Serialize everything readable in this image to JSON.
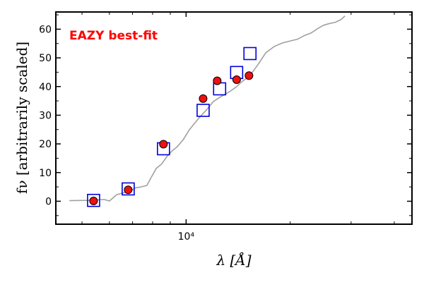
{
  "chart_data": {
    "type": "scatter",
    "title": "",
    "xlabel": "λ [Å]",
    "ylabel": "fν [arbitrarily scaled]",
    "x_scale": "log",
    "xlim": [
      4200,
      45000
    ],
    "ylim": [
      -8,
      66
    ],
    "x_ticks": [
      {
        "value": 10000,
        "label": "10⁴"
      }
    ],
    "y_ticks": [
      {
        "value": 0,
        "label": "0"
      },
      {
        "value": 10,
        "label": "10"
      },
      {
        "value": 20,
        "label": "20"
      },
      {
        "value": 30,
        "label": "30"
      },
      {
        "value": 40,
        "label": "40"
      },
      {
        "value": 50,
        "label": "50"
      },
      {
        "value": 60,
        "label": "60"
      }
    ],
    "grid": false,
    "annotation": {
      "text": "EAZY best-fit",
      "color": "#ff0000"
    },
    "series": [
      {
        "kind": "line",
        "color": "#a0a0a0",
        "x": [
          4600,
          5200,
          5800,
          6000,
          6300,
          6600,
          6900,
          7100,
          7400,
          7700,
          7900,
          8200,
          8500,
          8800,
          9100,
          9400,
          9800,
          10200,
          10600,
          11000,
          11500,
          12000,
          12500,
          13000,
          13500,
          14000,
          14500,
          15000,
          15500,
          16000,
          16500,
          17000,
          18000,
          19000,
          20000,
          21000,
          22000,
          23000,
          24000,
          25000,
          26000,
          27000,
          28000,
          28800
        ],
        "y": [
          0.2,
          0.3,
          0.6,
          0.1,
          2.3,
          3.0,
          3.4,
          4.6,
          5.0,
          5.5,
          8.0,
          11.5,
          13.0,
          15.6,
          17.5,
          18.9,
          21.4,
          24.8,
          27.3,
          29.6,
          32.1,
          34.8,
          36.2,
          37.4,
          38.6,
          40.0,
          41.7,
          43.0,
          44.8,
          47.0,
          49.4,
          51.8,
          54.0,
          55.2,
          55.9,
          56.5,
          57.8,
          58.7,
          60.2,
          61.4,
          62.0,
          62.4,
          63.3,
          64.6
        ]
      },
      {
        "kind": "markers",
        "marker": "square",
        "color": "#0000dd",
        "x": [
          5400,
          6800,
          8600,
          11200,
          12500,
          14000,
          15300
        ],
        "y": [
          0.3,
          4.3,
          18.3,
          31.7,
          39.2,
          44.9,
          51.5
        ]
      },
      {
        "kind": "markers",
        "marker": "circle",
        "color": "#ee1111",
        "x": [
          5400,
          6800,
          8600,
          11200,
          12300,
          14000,
          15200
        ],
        "y": [
          0.1,
          4.0,
          19.9,
          35.8,
          42.0,
          42.4,
          43.8
        ]
      }
    ]
  }
}
